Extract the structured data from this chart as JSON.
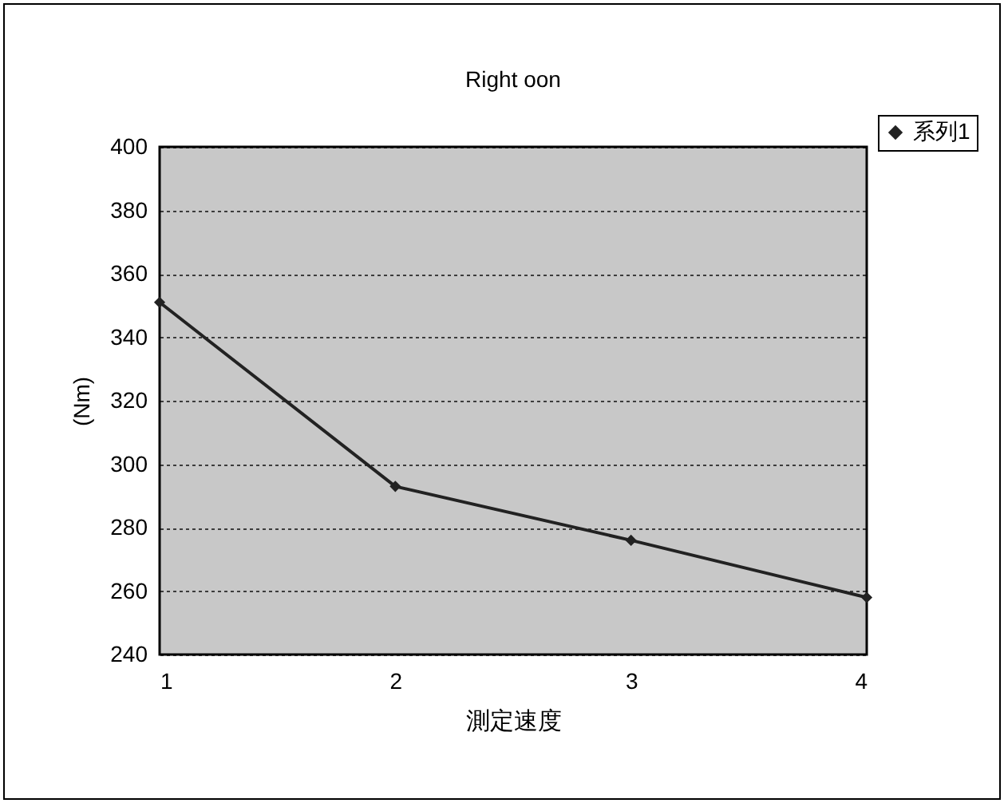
{
  "chart_data": {
    "type": "line",
    "title": "Right oon",
    "xlabel": "測定速度",
    "ylabel": "(Nm)",
    "x": [
      1,
      2,
      3,
      4
    ],
    "xlim": [
      1,
      4
    ],
    "xticks": [
      1,
      2,
      3,
      4
    ],
    "ylim": [
      240,
      400
    ],
    "yticks": [
      240,
      260,
      280,
      300,
      320,
      340,
      360,
      380,
      400
    ],
    "series": [
      {
        "name": "系列1",
        "color": "#222222",
        "values": [
          351,
          293,
          276,
          258
        ]
      }
    ],
    "grid": "y",
    "legend": "top right",
    "marker": "diamond",
    "line_style": "solid"
  }
}
